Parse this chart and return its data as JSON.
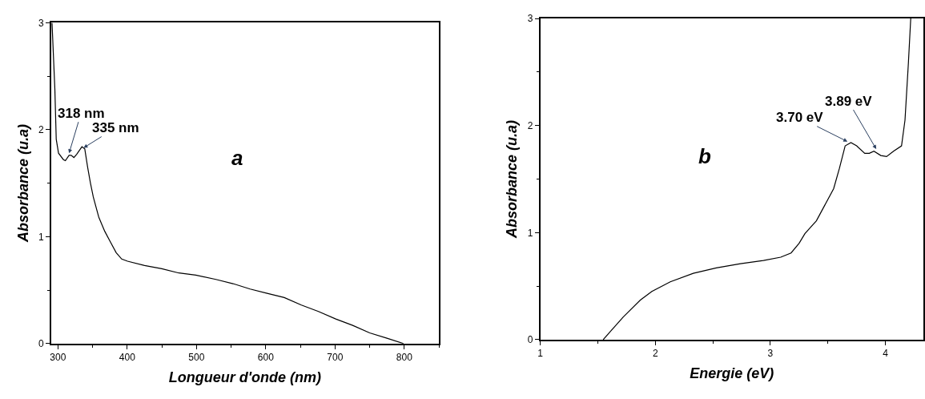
{
  "chart_data": [
    {
      "type": "line",
      "xlabel": "Longueur d'onde (nm)",
      "ylabel": "Absorbance (u.a)",
      "xlim": [
        290,
        850
      ],
      "xticks": [
        300,
        400,
        500,
        600,
        700,
        800
      ],
      "ylim": [
        0,
        3
      ],
      "yticks": [
        0,
        1,
        2,
        3
      ],
      "series": [
        {
          "color": "#000000",
          "x": [
            291.4,
            295.5,
            297.5,
            300.8,
            307.8,
            310.7,
            316,
            319,
            323,
            327,
            334.6,
            338.7,
            342.8,
            346.9,
            351,
            359,
            367.5,
            375.7,
            384,
            392,
            400.4,
            425,
            449.8,
            474.5,
            499,
            528,
            552.7,
            577.4,
            602,
            626.7,
            651.4,
            676,
            701,
            725.5,
            750,
            774.9,
            798.8
          ],
          "values": [
            3.0,
            2.38,
            1.91,
            1.78,
            1.72,
            1.71,
            1.76,
            1.76,
            1.74,
            1.77,
            1.84,
            1.82,
            1.65,
            1.5,
            1.37,
            1.18,
            1.05,
            0.95,
            0.85,
            0.79,
            0.77,
            0.73,
            0.7,
            0.66,
            0.64,
            0.6,
            0.56,
            0.51,
            0.47,
            0.43,
            0.36,
            0.3,
            0.23,
            0.17,
            0.1,
            0.05,
            0.0
          ]
        }
      ],
      "annotations": [
        {
          "text": "318 nm",
          "x": 316,
          "y": 1.78
        },
        {
          "text": "335 nm",
          "x": 337,
          "y": 1.83
        },
        "a"
      ]
    },
    {
      "type": "line",
      "xlabel": "Energie (eV)",
      "ylabel": "Absorbance (u.a)",
      "xlim": [
        1,
        4.33
      ],
      "xticks": [
        1,
        2,
        3,
        4
      ],
      "ylim": [
        0,
        3
      ],
      "yticks": [
        0,
        1,
        2,
        3
      ],
      "series": [
        {
          "color": "#000000",
          "x": [
            1.547,
            1.72,
            1.87,
            1.97,
            2.13,
            2.33,
            2.53,
            2.74,
            2.94,
            3.09,
            3.18,
            3.25,
            3.3,
            3.4,
            3.47,
            3.55,
            3.6,
            3.65,
            3.7,
            3.75,
            3.82,
            3.86,
            3.9,
            3.96,
            4.01,
            4.07,
            4.14,
            4.17,
            4.2,
            4.22
          ],
          "values": [
            0.0,
            0.21,
            0.37,
            0.45,
            0.54,
            0.62,
            0.67,
            0.71,
            0.74,
            0.77,
            0.81,
            0.9,
            0.99,
            1.11,
            1.25,
            1.41,
            1.6,
            1.81,
            1.84,
            1.81,
            1.74,
            1.74,
            1.76,
            1.72,
            1.71,
            1.76,
            1.81,
            2.05,
            2.59,
            3.0
          ]
        }
      ],
      "annotations": [
        {
          "text": "3.70 eV",
          "x": 3.67,
          "y": 1.85
        },
        {
          "text": "3.89 eV",
          "x": 3.92,
          "y": 1.78
        },
        "b"
      ]
    }
  ]
}
